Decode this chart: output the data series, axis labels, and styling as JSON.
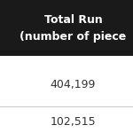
{
  "header_text": [
    "Total Run",
    "(number of piece"
  ],
  "rows": [
    "404,199",
    "102,515"
  ],
  "header_bg": "#1a1a1a",
  "header_text_color": "#ffffff",
  "row_bg": "#ffffff",
  "row_text_color": "#333333",
  "divider_color": "#cccccc",
  "header_fontsize": 9,
  "row_fontsize": 9
}
